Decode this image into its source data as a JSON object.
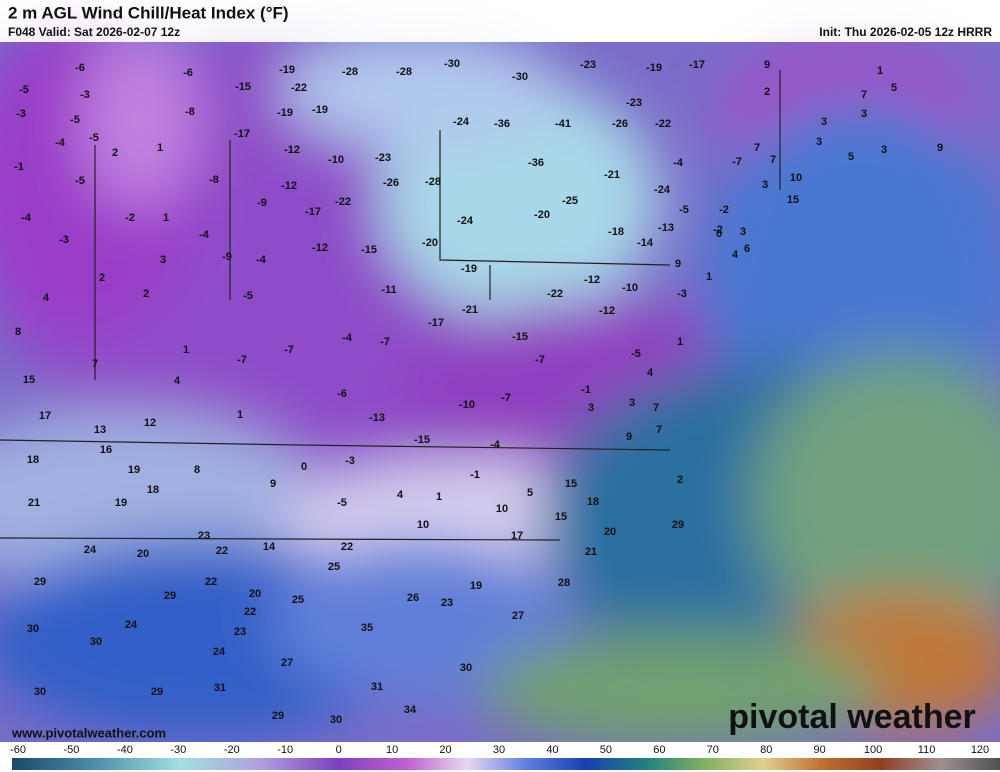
{
  "header": {
    "title": "2 m AGL Wind Chill/Heat Index (°F)",
    "valid": "F048 Valid: Sat 2026-02-07 12z",
    "init": "Init: Thu 2026-02-05 12z HRRR"
  },
  "footer": {
    "url": "www.pivotalweather.com",
    "logo": "pivotal weather"
  },
  "colorbar": {
    "ticks": [
      -60,
      -50,
      -40,
      -30,
      -20,
      -10,
      0,
      10,
      20,
      30,
      40,
      50,
      60,
      70,
      80,
      90,
      100,
      110,
      120
    ]
  },
  "map": {
    "labels": [
      -6,
      -5,
      -3,
      -6,
      -19,
      -28,
      -28,
      -30,
      -30,
      -23,
      -19,
      -17,
      9,
      1,
      -3,
      -5,
      -15,
      -22,
      -8,
      -19,
      -19,
      2,
      7,
      5,
      -23,
      3,
      -24,
      -36,
      -41,
      -26,
      -22,
      3,
      -4,
      -5,
      -17,
      2,
      1,
      3,
      3,
      -12,
      -10,
      -23,
      -36,
      -4,
      -7,
      7,
      7,
      5,
      9,
      -1,
      -5,
      -8,
      -21,
      -12,
      -26,
      -28,
      3,
      10,
      -9,
      -17,
      -22,
      -25,
      -24,
      15,
      -2,
      -4,
      -2,
      1,
      -24,
      -20,
      -5,
      -2,
      -13,
      -18,
      3,
      -3,
      -4,
      -12,
      -15,
      -20,
      -14,
      0,
      -9,
      -4,
      3,
      6,
      4,
      9,
      2,
      -19,
      -12,
      1,
      -10,
      -11,
      -22,
      2,
      4,
      -5,
      -3,
      -12,
      -21,
      8,
      -17,
      -15,
      -7,
      -7,
      -7,
      -4,
      1,
      -5,
      1,
      7,
      -7,
      4,
      15,
      4,
      -1,
      -6,
      -10,
      -7,
      3,
      3,
      7,
      17,
      1,
      -13,
      7,
      13,
      12,
      -15,
      -4,
      9,
      18,
      16,
      -3,
      0,
      19,
      8,
      -1,
      2,
      9,
      18,
      15,
      5,
      4,
      1,
      18,
      21,
      19,
      -5,
      10,
      15,
      10,
      20,
      29,
      23,
      17,
      24,
      20,
      22,
      14,
      22,
      21,
      25,
      29,
      22,
      28,
      19,
      20,
      29,
      25,
      26,
      23,
      22,
      27,
      24,
      30,
      23,
      35,
      30,
      24,
      27,
      30,
      31,
      31,
      30,
      29,
      34,
      29,
      30
    ]
  }
}
